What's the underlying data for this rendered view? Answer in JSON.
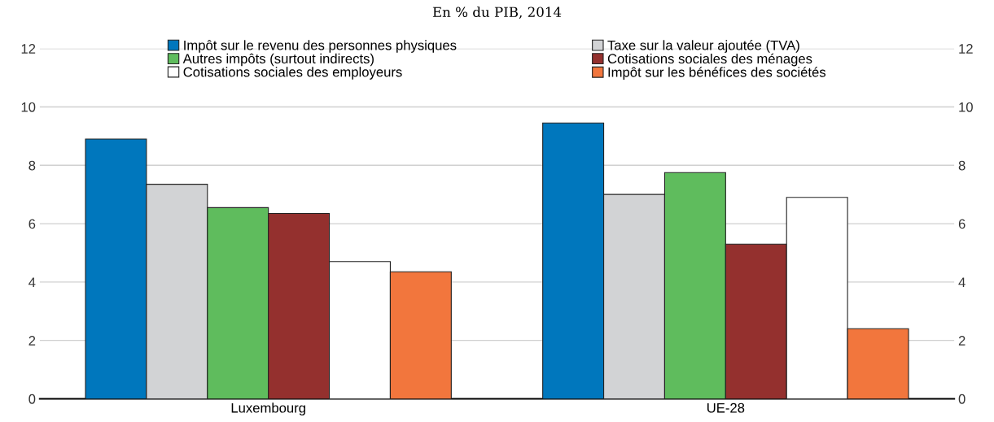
{
  "chart_data": {
    "type": "bar",
    "title": "En % du PIB, 2014",
    "categories": [
      "Luxembourg",
      "UE-28"
    ],
    "series": [
      {
        "name": "Impôt sur le revenu des personnes physiques",
        "color": "#0077bd",
        "values": [
          8.9,
          9.45
        ]
      },
      {
        "name": "Taxe sur la valeur ajoutée (TVA)",
        "color": "#d2d3d5",
        "values": [
          7.35,
          7.0
        ]
      },
      {
        "name": "Autres impôts (surtout indirects)",
        "color": "#5fbc5d",
        "values": [
          6.55,
          7.75
        ]
      },
      {
        "name": "Cotisations sociales des ménages",
        "color": "#94302e",
        "values": [
          6.35,
          5.3
        ]
      },
      {
        "name": "Cotisations sociales des employeurs",
        "color": "#ffffff",
        "values": [
          4.7,
          6.9
        ]
      },
      {
        "name": "Impôt sur les bénéfices des sociétés",
        "color": "#f2763d",
        "values": [
          4.35,
          2.4
        ]
      }
    ],
    "ylim": [
      0,
      12
    ],
    "yticks": [
      0,
      2,
      4,
      6,
      8,
      10,
      12
    ],
    "y2lim": [
      0,
      12
    ],
    "y2ticks": [
      0,
      2,
      4,
      6,
      8,
      10,
      12
    ],
    "grid": "y",
    "legend": "top"
  }
}
